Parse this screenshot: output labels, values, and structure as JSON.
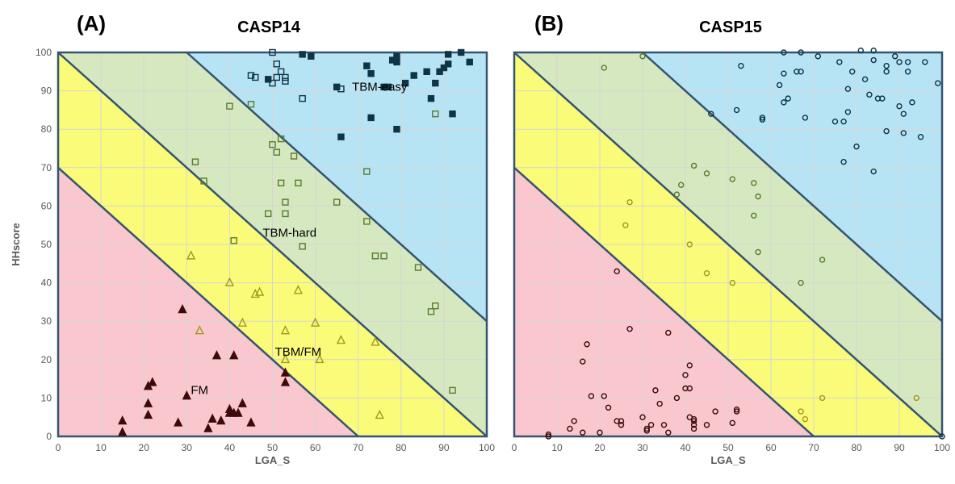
{
  "colors": {
    "fm": "#f9c7cd",
    "tbm_fm": "#fbfb7a",
    "tbm_hard": "#d6e8bf",
    "tbm_easy": "#b7e4f4",
    "boundary": "#34546f",
    "fm_marker": "#3c0a0a",
    "tbm_fm_marker": "#a09a1c",
    "tbm_hard_marker": "#5a7a2e",
    "tbm_easy_marker": "#0e3446"
  },
  "chart_data": [
    {
      "panel_label": "(A)",
      "title": "CASP14",
      "type": "scatter",
      "xlabel": "LGA_S",
      "ylabel": "HHscore",
      "xlim": [
        0,
        100
      ],
      "ylim": [
        0,
        100
      ],
      "xticks": [
        "0",
        "10",
        "20",
        "30",
        "40",
        "50",
        "60",
        "70",
        "80",
        "90",
        "100"
      ],
      "yticks": [
        "0",
        "10",
        "20",
        "30",
        "40",
        "50",
        "60",
        "70",
        "80",
        "90",
        "100"
      ],
      "grid": true,
      "boundaries": [
        70,
        100,
        130
      ],
      "region_labels": [
        {
          "text": "FM",
          "x": 33,
          "y": 11
        },
        {
          "text": "TBM/FM",
          "x": 56,
          "y": 21
        },
        {
          "text": "TBM-hard",
          "x": 54,
          "y": 52
        },
        {
          "text": "TBM-easy",
          "x": 75,
          "y": 90
        }
      ],
      "series": [
        {
          "category": "FM",
          "marker": "triangle-filled",
          "points": [
            [
              15,
              4
            ],
            [
              15,
              1
            ],
            [
              21,
              13
            ],
            [
              21,
              8.5
            ],
            [
              21,
              5.5
            ],
            [
              22,
              14
            ],
            [
              28,
              3.5
            ],
            [
              29,
              33
            ],
            [
              30,
              10.5
            ],
            [
              35,
              2
            ],
            [
              36,
              4.5
            ],
            [
              37,
              21
            ],
            [
              38,
              4
            ],
            [
              40,
              7
            ],
            [
              40,
              6
            ],
            [
              41,
              21
            ],
            [
              41,
              6
            ],
            [
              42,
              6
            ],
            [
              43,
              8.5
            ],
            [
              45,
              3.5
            ],
            [
              53,
              14
            ],
            [
              53,
              16.5
            ]
          ]
        },
        {
          "category": "TBM/FM",
          "marker": "triangle-open",
          "points": [
            [
              31,
              47
            ],
            [
              33,
              27.5
            ],
            [
              40,
              40
            ],
            [
              43,
              29.5
            ],
            [
              46,
              37
            ],
            [
              47,
              37.5
            ],
            [
              53,
              27.5
            ],
            [
              53,
              20
            ],
            [
              56,
              38
            ],
            [
              60,
              29.5
            ],
            [
              61,
              20
            ],
            [
              66,
              25
            ],
            [
              74,
              24.5
            ],
            [
              75,
              5.5
            ]
          ]
        },
        {
          "category": "TBM-hard",
          "marker": "square-open",
          "points": [
            [
              32,
              71.5
            ],
            [
              34,
              66.5
            ],
            [
              40,
              86
            ],
            [
              41,
              51
            ],
            [
              45,
              86.5
            ],
            [
              49,
              58
            ],
            [
              50,
              76
            ],
            [
              51,
              74
            ],
            [
              52,
              77.5
            ],
            [
              52,
              66
            ],
            [
              53,
              61
            ],
            [
              53,
              58
            ],
            [
              55,
              73
            ],
            [
              56,
              66
            ],
            [
              57,
              49.5
            ],
            [
              65,
              61
            ],
            [
              72,
              69
            ],
            [
              72,
              56
            ],
            [
              74,
              47
            ],
            [
              76,
              47
            ],
            [
              84,
              44
            ],
            [
              87,
              32.5
            ],
            [
              88,
              34
            ],
            [
              88,
              84
            ],
            [
              92,
              12
            ]
          ]
        },
        {
          "category": "TBM-easy",
          "marker": "square-open",
          "points": [
            [
              45,
              94
            ],
            [
              46,
              93.5
            ],
            [
              50,
              92
            ],
            [
              51,
              97
            ],
            [
              51,
              93.5
            ],
            [
              52,
              95
            ],
            [
              53,
              92.5
            ],
            [
              53,
              93.5
            ],
            [
              57,
              88
            ],
            [
              66,
              90.5
            ],
            [
              50,
              100
            ]
          ]
        },
        {
          "category": "TBM-easy",
          "marker": "square-filled",
          "points": [
            [
              49,
              93
            ],
            [
              57,
              99.5
            ],
            [
              59,
              99
            ],
            [
              65,
              91
            ],
            [
              66,
              78
            ],
            [
              72,
              96.5
            ],
            [
              73,
              83
            ],
            [
              73,
              94.5
            ],
            [
              76,
              91
            ],
            [
              77,
              91
            ],
            [
              78,
              98
            ],
            [
              79,
              97.5
            ],
            [
              79,
              99
            ],
            [
              79,
              80
            ],
            [
              81,
              92
            ],
            [
              83,
              94
            ],
            [
              86,
              95
            ],
            [
              87,
              88
            ],
            [
              88,
              92
            ],
            [
              89,
              95
            ],
            [
              90,
              96
            ],
            [
              91,
              97
            ],
            [
              91,
              99.5
            ],
            [
              92,
              84
            ],
            [
              94,
              100
            ],
            [
              96,
              97.5
            ]
          ]
        }
      ]
    },
    {
      "panel_label": "(B)",
      "title": "CASP15",
      "type": "scatter",
      "xlabel": "LGA_S",
      "ylabel": "",
      "xlim": [
        0,
        100
      ],
      "ylim": [
        0,
        100
      ],
      "xticks": [
        "0",
        "10",
        "20",
        "30",
        "40",
        "50",
        "60",
        "70",
        "80",
        "90",
        "100"
      ],
      "yticks": [],
      "grid": true,
      "boundaries": [
        70,
        100,
        130
      ],
      "region_labels": [],
      "series": [
        {
          "category": "FM",
          "marker": "circle-open",
          "points": [
            [
              8,
              0.5
            ],
            [
              13,
              2
            ],
            [
              14,
              4
            ],
            [
              16,
              19.5
            ],
            [
              16,
              1
            ],
            [
              17,
              24
            ],
            [
              18,
              10.5
            ],
            [
              20,
              1
            ],
            [
              21,
              10.5
            ],
            [
              22,
              7.5
            ],
            [
              24,
              43
            ],
            [
              24,
              4
            ],
            [
              25,
              4
            ],
            [
              25,
              3
            ],
            [
              27,
              28
            ],
            [
              30,
              5
            ],
            [
              31,
              2
            ],
            [
              31,
              1.5
            ],
            [
              32,
              3
            ],
            [
              33,
              12
            ],
            [
              34,
              8.5
            ],
            [
              35,
              3
            ],
            [
              36,
              1
            ],
            [
              36,
              27
            ],
            [
              38,
              10
            ],
            [
              40,
              12.5
            ],
            [
              40,
              16
            ],
            [
              41,
              18.5
            ],
            [
              41,
              12.5
            ],
            [
              41,
              5
            ],
            [
              42,
              3
            ],
            [
              42,
              4
            ],
            [
              42,
              2
            ],
            [
              42,
              4.5
            ],
            [
              45,
              3
            ],
            [
              47,
              6.5
            ],
            [
              51,
              3.5
            ],
            [
              52,
              6.5
            ],
            [
              52,
              7
            ],
            [
              8,
              0
            ]
          ]
        },
        {
          "category": "TBM/FM",
          "marker": "circle-open",
          "points": [
            [
              26,
              55
            ],
            [
              27,
              61
            ],
            [
              41,
              50
            ],
            [
              45,
              42.5
            ],
            [
              51,
              40
            ],
            [
              67,
              6.5
            ],
            [
              68,
              4.5
            ],
            [
              72,
              10
            ],
            [
              94,
              10
            ]
          ]
        },
        {
          "category": "TBM-hard",
          "marker": "circle-open",
          "points": [
            [
              21,
              96
            ],
            [
              30,
              99
            ],
            [
              38,
              63
            ],
            [
              39,
              65.5
            ],
            [
              42,
              70.5
            ],
            [
              45,
              68.5
            ],
            [
              51,
              67
            ],
            [
              56,
              66
            ],
            [
              56,
              57.5
            ],
            [
              57,
              62.5
            ],
            [
              57,
              48
            ],
            [
              67,
              40
            ],
            [
              72,
              46
            ]
          ]
        },
        {
          "category": "TBM-easy",
          "marker": "circle-open",
          "points": [
            [
              46,
              84
            ],
            [
              52,
              85
            ],
            [
              53,
              96.5
            ],
            [
              58,
              83
            ],
            [
              58,
              82.5
            ],
            [
              62,
              91.5
            ],
            [
              63,
              94.5
            ],
            [
              63,
              87
            ],
            [
              63,
              100
            ],
            [
              64,
              88
            ],
            [
              66,
              95
            ],
            [
              67,
              95
            ],
            [
              67,
              100
            ],
            [
              68,
              83
            ],
            [
              71,
              99
            ],
            [
              75,
              82
            ],
            [
              76,
              97.5
            ],
            [
              77,
              82
            ],
            [
              77,
              71.5
            ],
            [
              78,
              90.5
            ],
            [
              78,
              84.5
            ],
            [
              79,
              95
            ],
            [
              80,
              75.5
            ],
            [
              81,
              100.5
            ],
            [
              82,
              93
            ],
            [
              83,
              89
            ],
            [
              84,
              100.5
            ],
            [
              84,
              69
            ],
            [
              84,
              98
            ],
            [
              85,
              88
            ],
            [
              86,
              88
            ],
            [
              87,
              95
            ],
            [
              87,
              79.5
            ],
            [
              87,
              96.5
            ],
            [
              89,
              99
            ],
            [
              90,
              86
            ],
            [
              90,
              97.5
            ],
            [
              91,
              79
            ],
            [
              91,
              84
            ],
            [
              92,
              97.5
            ],
            [
              92,
              95
            ],
            [
              93,
              87
            ],
            [
              95,
              78
            ],
            [
              96,
              97.5
            ],
            [
              99,
              92
            ],
            [
              100,
              0
            ]
          ]
        }
      ]
    }
  ]
}
